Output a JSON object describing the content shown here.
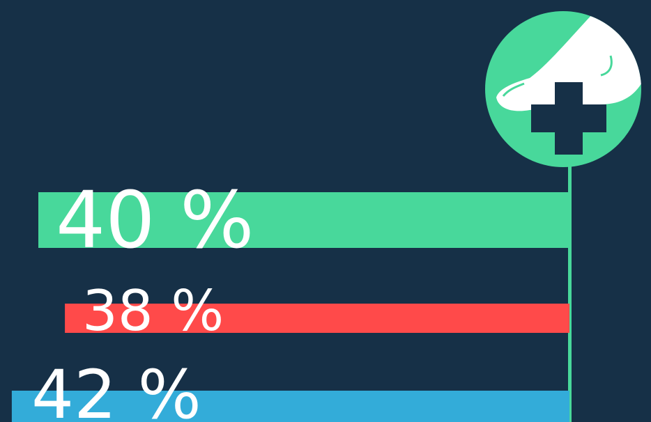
{
  "chart_data": {
    "type": "bar",
    "orientation": "horizontal",
    "values": [
      40,
      38,
      42
    ],
    "value_labels": [
      "40 %",
      "38 %",
      "42 %"
    ],
    "colors": [
      "#48d89b",
      "#ff4a4a",
      "#33acd9"
    ]
  }
}
